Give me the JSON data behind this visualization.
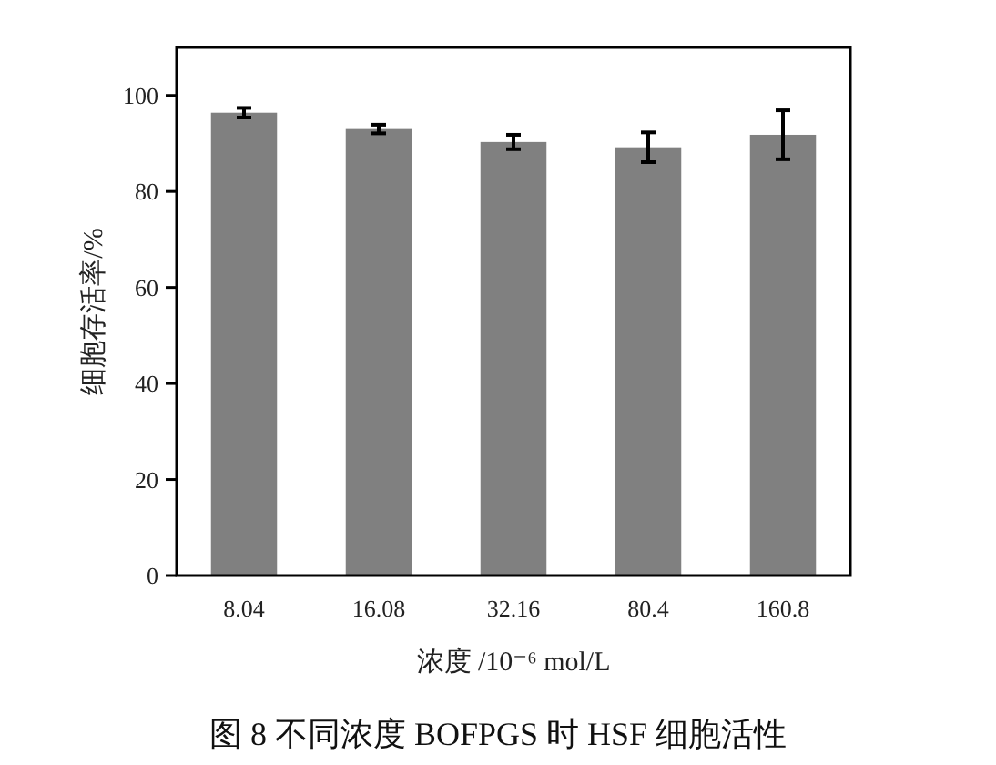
{
  "chart_data": {
    "type": "bar",
    "title": "图 8 不同浓度 BOFPGS 时 HSF 细胞活性",
    "xlabel": "浓度 /10⁻⁶ mol/L",
    "ylabel": "细胞存活率/%",
    "categories": [
      "8.04",
      "16.08",
      "32.16",
      "80.4",
      "160.8"
    ],
    "values": [
      96.4,
      93.0,
      90.3,
      89.2,
      91.8
    ],
    "errors": [
      1.0,
      0.9,
      1.5,
      3.1,
      5.1
    ],
    "color": "#808080",
    "ylim": [
      0,
      110
    ],
    "yticks": [
      0,
      20,
      40,
      60,
      80,
      100
    ]
  }
}
